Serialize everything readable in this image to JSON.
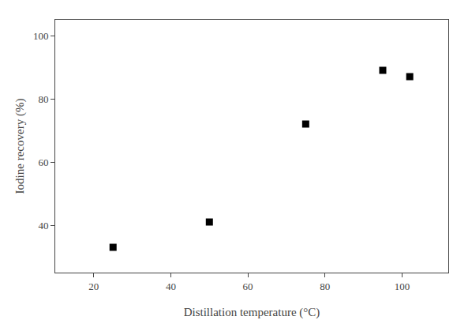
{
  "chart_data": {
    "type": "scatter",
    "x": [
      25,
      50,
      75,
      95,
      102
    ],
    "y": [
      33,
      41,
      72,
      89,
      87
    ],
    "xlabel": "Distillation temperature (°C)",
    "ylabel": "Iodine recovery (%)",
    "xlim": [
      10,
      112
    ],
    "ylim": [
      25,
      105
    ],
    "xticks": [
      20,
      40,
      60,
      80,
      100
    ],
    "yticks": [
      40,
      60,
      80,
      100
    ],
    "color": "black",
    "marker": "square",
    "grid": false
  }
}
